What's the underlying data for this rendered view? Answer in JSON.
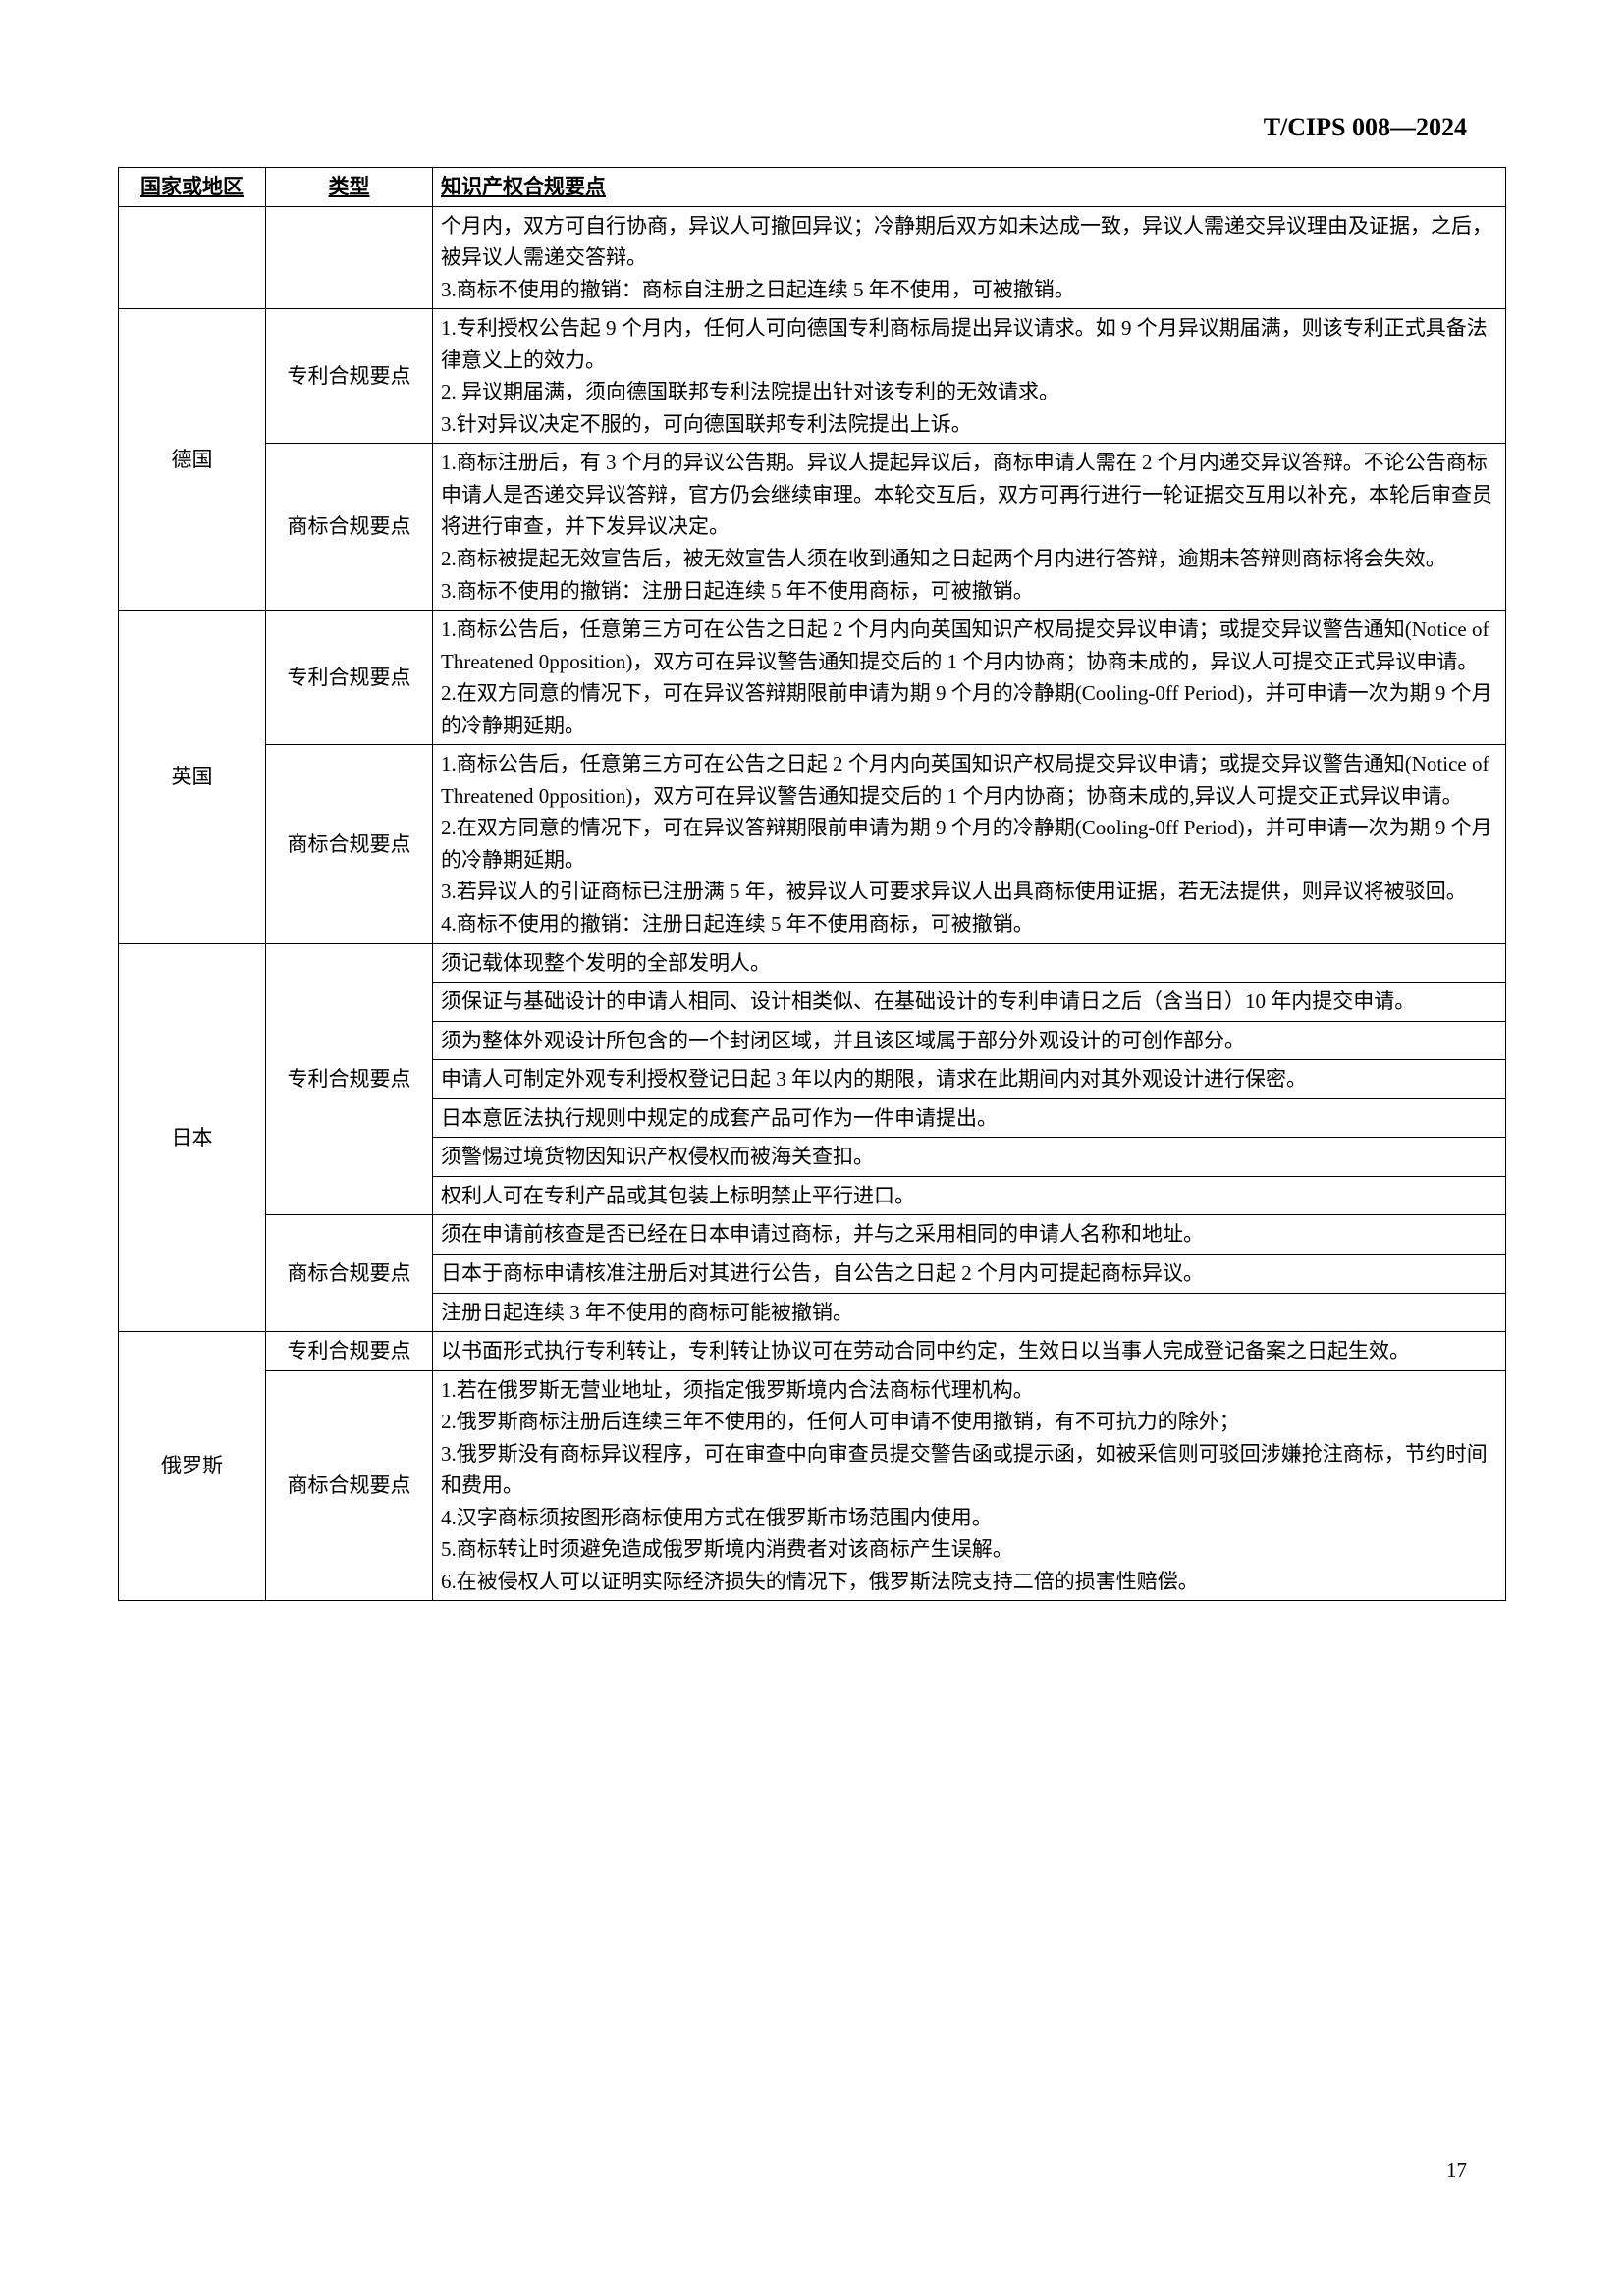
{
  "document": {
    "header_code": "T/CIPS 008—2024",
    "page_number": "17"
  },
  "table": {
    "headers": {
      "col1": "国家或地区",
      "col2": "类型",
      "col3": "知识产权合规要点"
    },
    "rows": [
      {
        "country": "",
        "type": "",
        "content": "个月内，双方可自行协商，异议人可撤回异议；冷静期后双方如未达成一致，异议人需递交异议理由及证据，之后，被异议人需递交答辩。\n3.商标不使用的撤销：商标自注册之日起连续 5 年不使用，可被撤销。"
      },
      {
        "country": "德国",
        "country_rowspan": 2,
        "type": "专利合规要点",
        "content": "1.专利授权公告起 9 个月内，任何人可向德国专利商标局提出异议请求。如 9 个月异议期届满，则该专利正式具备法律意义上的效力。\n2. 异议期届满，须向德国联邦专利法院提出针对该专利的无效请求。\n3.针对异议决定不服的，可向德国联邦专利法院提出上诉。"
      },
      {
        "type": "商标合规要点",
        "content": "1.商标注册后，有 3 个月的异议公告期。异议人提起异议后，商标申请人需在 2 个月内递交异议答辩。不论公告商标申请人是否递交异议答辩，官方仍会继续审理。本轮交互后，双方可再行进行一轮证据交互用以补充，本轮后审查员将进行审查，并下发异议决定。\n2.商标被提起无效宣告后，被无效宣告人须在收到通知之日起两个月内进行答辩，逾期未答辩则商标将会失效。\n3.商标不使用的撤销：注册日起连续 5 年不使用商标，可被撤销。"
      },
      {
        "country": "英国",
        "country_rowspan": 2,
        "type": "专利合规要点",
        "content": "1.商标公告后，任意第三方可在公告之日起 2 个月内向英国知识产权局提交异议申请；或提交异议警告通知(Notice of Threatened 0pposition)，双方可在异议警告通知提交后的 1 个月内协商；协商未成的，异议人可提交正式异议申请。\n2.在双方同意的情况下，可在异议答辩期限前申请为期 9 个月的冷静期(Cooling-0ff Period)，并可申请一次为期 9 个月的冷静期延期。"
      },
      {
        "type": "商标合规要点",
        "content": "1.商标公告后，任意第三方可在公告之日起 2 个月内向英国知识产权局提交异议申请；或提交异议警告通知(Notice of Threatened 0pposition)，双方可在异议警告通知提交后的 1 个月内协商；协商未成的,异议人可提交正式异议申请。\n2.在双方同意的情况下，可在异议答辩期限前申请为期 9 个月的冷静期(Cooling-0ff Period)，并可申请一次为期 9 个月的冷静期延期。\n3.若异议人的引证商标已注册满 5 年，被异议人可要求异议人出具商标使用证据，若无法提供，则异议将被驳回。\n4.商标不使用的撤销：注册日起连续 5 年不使用商标，可被撤销。"
      },
      {
        "country": "日本",
        "country_rowspan": 9,
        "type": "专利合规要点",
        "type_rowspan": 6,
        "content": "须记载体现整个发明的全部发明人。"
      },
      {
        "content": "须保证与基础设计的申请人相同、设计相类似、在基础设计的专利申请日之后（含当日）10 年内提交申请。"
      },
      {
        "content": "须为整体外观设计所包含的一个封闭区域，并且该区域属于部分外观设计的可创作部分。"
      },
      {
        "content": "申请人可制定外观专利授权登记日起 3 年以内的期限，请求在此期间内对其外观设计进行保密。"
      },
      {
        "content": "日本意匠法执行规则中规定的成套产品可作为一件申请提出。"
      },
      {
        "content": "须警惕过境货物因知识产权侵权而被海关查扣。"
      },
      {
        "type": "商标合规要点",
        "type_rowspan": 3,
        "content_pre": "权利人可在专利产品或其包装上标明禁止平行进口。"
      },
      {
        "content": "须在申请前核查是否已经在日本申请过商标，并与之采用相同的申请人名称和地址。"
      },
      {
        "content": "日本于商标申请核准注册后对其进行公告，自公告之日起 2 个月内可提起商标异议。"
      },
      {
        "content": "注册日起连续 3 年不使用的商标可能被撤销。"
      },
      {
        "country": "俄罗斯",
        "country_rowspan": 2,
        "type": "专利合规要点",
        "content": "以书面形式执行专利转让，专利转让协议可在劳动合同中约定，生效日以当事人完成登记备案之日起生效。"
      },
      {
        "type": "商标合规要点",
        "content": "1.若在俄罗斯无营业地址，须指定俄罗斯境内合法商标代理机构。\n2.俄罗斯商标注册后连续三年不使用的，任何人可申请不使用撤销，有不可抗力的除外；\n3.俄罗斯没有商标异议程序，可在审查中向审查员提交警告函或提示函，如被采信则可驳回涉嫌抢注商标，节约时间和费用。\n4.汉字商标须按图形商标使用方式在俄罗斯市场范围内使用。\n5.商标转让时须避免造成俄罗斯境内消费者对该商标产生误解。\n6.在被侵权人可以证明实际经济损失的情况下，俄罗斯法院支持二倍的损害性赔偿。"
      }
    ]
  }
}
